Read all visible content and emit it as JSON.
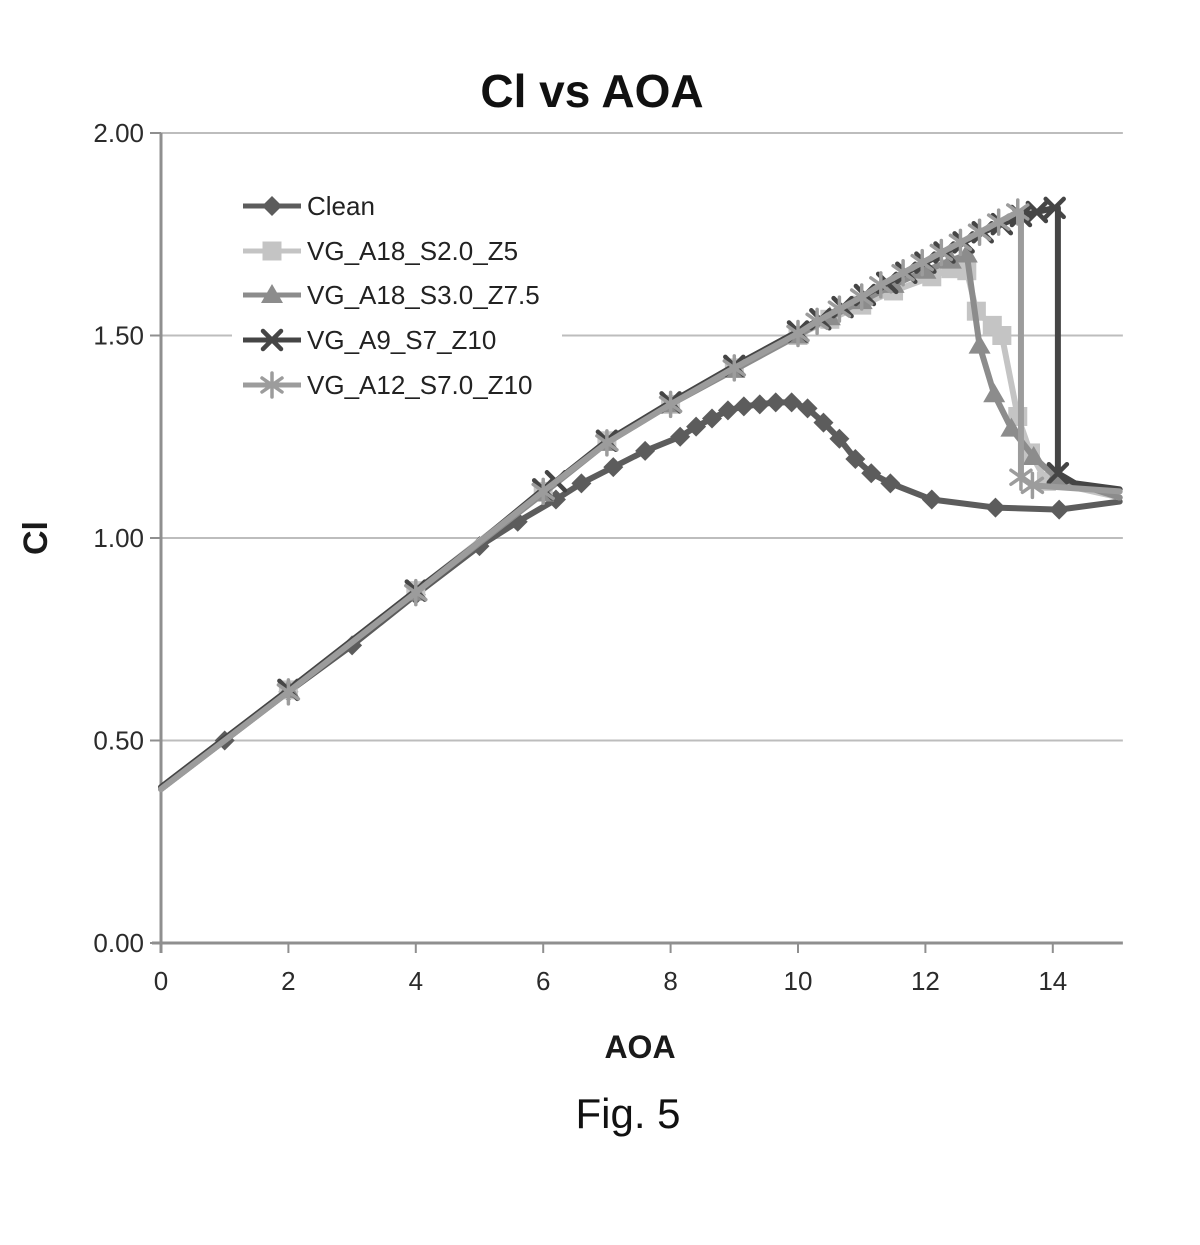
{
  "figure": {
    "caption": "Fig. 5"
  },
  "chart_data": {
    "type": "line",
    "title": "Cl vs AOA",
    "xlabel": "AOA",
    "ylabel": "Cl",
    "xlim": [
      0,
      15.1
    ],
    "ylim": [
      0.0,
      2.0
    ],
    "xticks": [
      0,
      2,
      4,
      6,
      8,
      10,
      12,
      14
    ],
    "ytick_values": [
      0.0,
      0.5,
      1.0,
      1.5,
      2.0
    ],
    "ytick_labels": [
      "0.00",
      "0.50",
      "1.00",
      "1.50",
      "2.00"
    ],
    "grid": "horizontal",
    "legend_position": "inside-upper-left",
    "axis_color": "#8f8f8f",
    "grid_color": "#bdbdbd",
    "text_color": "#2b2b2b",
    "series": [
      {
        "name": "Clean",
        "marker": "diamond",
        "color": "#5c5c5c",
        "points": [
          [
            0,
            0.38,
            0
          ],
          [
            1,
            0.5,
            1
          ],
          [
            2,
            0.62,
            1
          ],
          [
            3,
            0.735,
            1
          ],
          [
            4,
            0.86,
            1
          ],
          [
            5,
            0.98,
            1
          ],
          [
            5.6,
            1.04,
            1
          ],
          [
            6.2,
            1.095,
            1
          ],
          [
            6.6,
            1.135,
            1
          ],
          [
            7.1,
            1.175,
            1
          ],
          [
            7.6,
            1.215,
            1
          ],
          [
            8.15,
            1.25,
            1
          ],
          [
            8.4,
            1.275,
            1
          ],
          [
            8.65,
            1.295,
            1
          ],
          [
            8.9,
            1.315,
            1
          ],
          [
            9.15,
            1.325,
            1
          ],
          [
            9.4,
            1.33,
            1
          ],
          [
            9.65,
            1.335,
            1
          ],
          [
            9.9,
            1.335,
            1
          ],
          [
            10.15,
            1.32,
            1
          ],
          [
            10.4,
            1.285,
            1
          ],
          [
            10.65,
            1.245,
            1
          ],
          [
            10.9,
            1.195,
            1
          ],
          [
            11.15,
            1.16,
            1
          ],
          [
            11.45,
            1.135,
            1
          ],
          [
            12.1,
            1.095,
            1
          ],
          [
            13.1,
            1.075,
            1
          ],
          [
            14.1,
            1.07,
            1
          ],
          [
            15.05,
            1.09,
            0
          ]
        ]
      },
      {
        "name": "VG_A18_S2.0_Z5",
        "marker": "square",
        "color": "#c4c4c4",
        "points": [
          [
            0,
            0.38,
            0
          ],
          [
            2,
            0.625,
            1
          ],
          [
            4,
            0.87,
            1
          ],
          [
            6,
            1.115,
            1
          ],
          [
            7,
            1.24,
            1
          ],
          [
            8,
            1.33,
            1
          ],
          [
            9,
            1.42,
            1
          ],
          [
            10,
            1.5,
            1
          ],
          [
            10.5,
            1.54,
            1
          ],
          [
            11,
            1.575,
            1
          ],
          [
            11.5,
            1.61,
            1
          ],
          [
            12.1,
            1.645,
            1
          ],
          [
            12.4,
            1.665,
            1
          ],
          [
            12.65,
            1.66,
            1
          ],
          [
            12.8,
            1.56,
            1
          ],
          [
            13.05,
            1.525,
            1
          ],
          [
            13.2,
            1.5,
            1
          ],
          [
            13.45,
            1.3,
            1
          ],
          [
            13.65,
            1.21,
            1
          ],
          [
            13.9,
            1.14,
            1
          ],
          [
            15.05,
            1.1,
            0
          ]
        ]
      },
      {
        "name": "VG_A18_S3.0_Z7.5",
        "marker": "triangle",
        "color": "#8c8c8c",
        "points": [
          [
            0,
            0.38,
            0
          ],
          [
            2,
            0.625,
            1
          ],
          [
            4,
            0.865,
            1
          ],
          [
            6,
            1.11,
            1
          ],
          [
            7,
            1.235,
            1
          ],
          [
            8,
            1.33,
            1
          ],
          [
            9,
            1.415,
            1
          ],
          [
            10,
            1.5,
            1
          ],
          [
            10.5,
            1.545,
            1
          ],
          [
            11,
            1.585,
            1
          ],
          [
            11.5,
            1.625,
            1
          ],
          [
            12,
            1.66,
            1
          ],
          [
            12.4,
            1.685,
            1
          ],
          [
            12.65,
            1.7,
            1
          ],
          [
            12.85,
            1.475,
            1
          ],
          [
            13.08,
            1.355,
            1
          ],
          [
            13.35,
            1.27,
            1
          ],
          [
            13.7,
            1.2,
            1
          ],
          [
            14.05,
            1.15,
            1
          ],
          [
            15.05,
            1.1,
            0
          ]
        ]
      },
      {
        "name": "VG_A9_S7_Z10",
        "marker": "x",
        "color": "#454545",
        "points": [
          [
            0,
            0.385,
            0
          ],
          [
            2,
            0.625,
            1
          ],
          [
            4,
            0.87,
            1
          ],
          [
            5,
            0.99,
            0
          ],
          [
            6,
            1.12,
            1
          ],
          [
            6.2,
            1.14,
            1
          ],
          [
            7,
            1.24,
            1
          ],
          [
            8,
            1.335,
            1
          ],
          [
            9,
            1.425,
            1
          ],
          [
            10,
            1.51,
            1
          ],
          [
            10.35,
            1.54,
            1
          ],
          [
            10.7,
            1.57,
            1
          ],
          [
            11.05,
            1.6,
            1
          ],
          [
            11.4,
            1.63,
            1
          ],
          [
            11.7,
            1.655,
            1
          ],
          [
            12,
            1.68,
            1
          ],
          [
            12.3,
            1.705,
            1
          ],
          [
            12.6,
            1.73,
            1
          ],
          [
            12.9,
            1.755,
            1
          ],
          [
            13.2,
            1.775,
            1
          ],
          [
            13.5,
            1.795,
            1
          ],
          [
            13.75,
            1.805,
            1
          ],
          [
            14.03,
            1.815,
            1
          ],
          [
            14.08,
            1.815,
            0
          ],
          [
            14.08,
            1.16,
            1
          ],
          [
            14.35,
            1.135,
            0
          ],
          [
            15.05,
            1.12,
            0
          ]
        ]
      },
      {
        "name": "VG_A12_S7.0_Z10",
        "marker": "asterisk",
        "color": "#9c9c9c",
        "points": [
          [
            0,
            0.38,
            0
          ],
          [
            2,
            0.62,
            1
          ],
          [
            4,
            0.865,
            1
          ],
          [
            6,
            1.115,
            1
          ],
          [
            7,
            1.235,
            1
          ],
          [
            8,
            1.33,
            1
          ],
          [
            9,
            1.42,
            1
          ],
          [
            10,
            1.505,
            1
          ],
          [
            10.3,
            1.535,
            1
          ],
          [
            10.65,
            1.565,
            1
          ],
          [
            11,
            1.595,
            1
          ],
          [
            11.3,
            1.625,
            1
          ],
          [
            11.65,
            1.655,
            1
          ],
          [
            11.95,
            1.68,
            1
          ],
          [
            12.25,
            1.705,
            1
          ],
          [
            12.55,
            1.73,
            1
          ],
          [
            12.85,
            1.755,
            1
          ],
          [
            13.15,
            1.78,
            1
          ],
          [
            13.45,
            1.805,
            1
          ],
          [
            13.5,
            1.805,
            0
          ],
          [
            13.5,
            1.15,
            1
          ],
          [
            13.68,
            1.13,
            1
          ],
          [
            15.05,
            1.115,
            0
          ]
        ]
      }
    ]
  }
}
